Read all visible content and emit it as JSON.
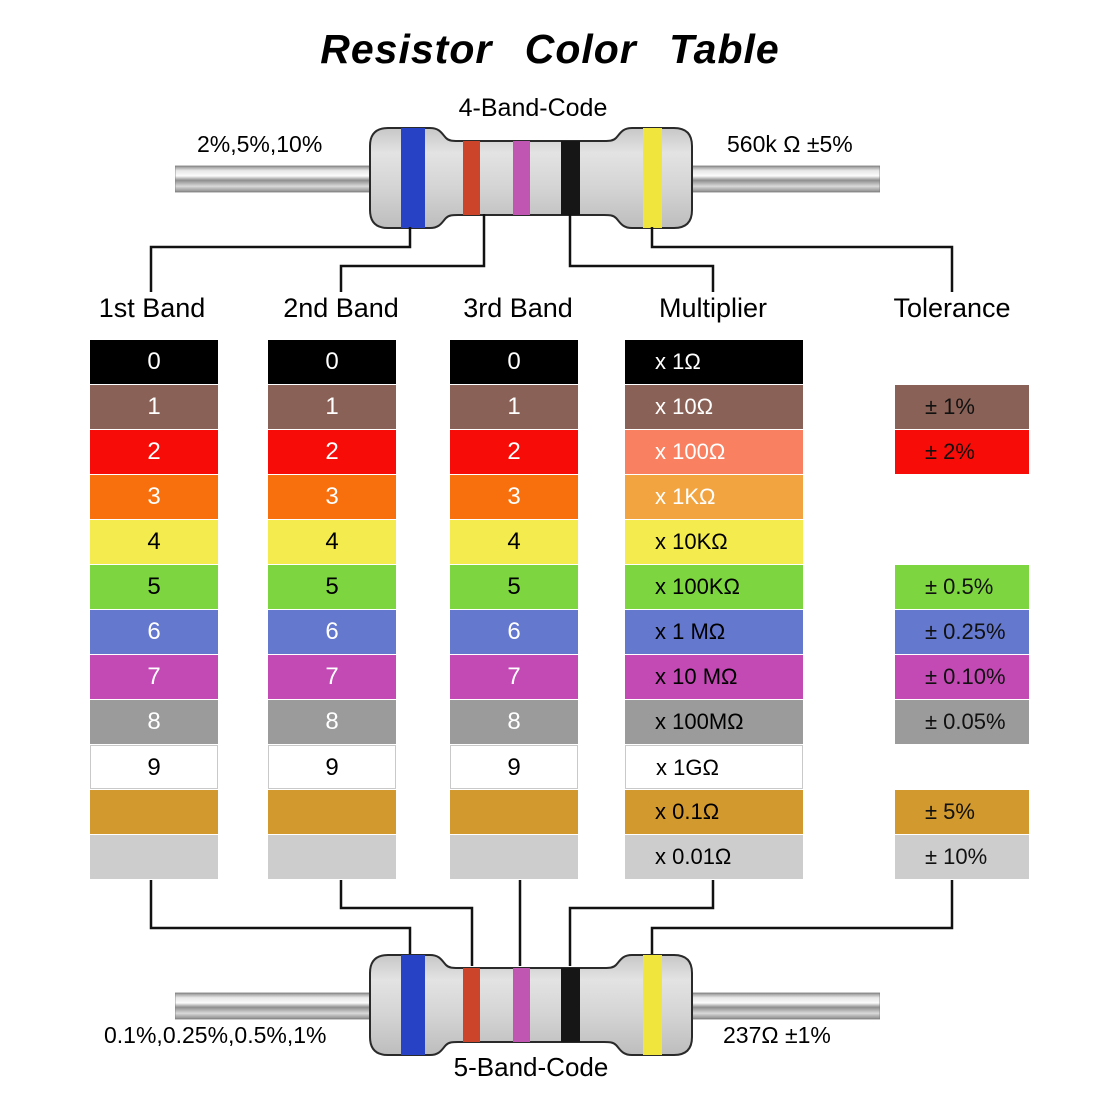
{
  "title": "Resistor Color Table",
  "headers": [
    "1st Band",
    "2nd Band",
    "3rd Band",
    "Multiplier",
    "Tolerance"
  ],
  "digit_rows": {
    "digits": [
      "0",
      "1",
      "2",
      "3",
      "4",
      "5",
      "6",
      "7",
      "8",
      "9",
      "",
      ""
    ],
    "color_names": [
      "black",
      "brown",
      "red",
      "orange",
      "yellow",
      "green",
      "blue",
      "violet",
      "gray",
      "white",
      "gold",
      "silver"
    ],
    "colors": [
      "#000000",
      "#8A6156",
      "#F80C08",
      "#F8700D",
      "#F4EC4F",
      "#7DD53F",
      "#6478CE",
      "#C34AB4",
      "#9B9B9B",
      "#FFFFFF",
      "#D1992E",
      "#CDCDCD"
    ],
    "text_colors": [
      "#FFFFFF",
      "#FFFFFF",
      "#FFFFFF",
      "#FFFFFF",
      "#000000",
      "#000000",
      "#FFFFFF",
      "#FFFFFF",
      "#FFFFFF",
      "#000000",
      "",
      ""
    ]
  },
  "multiplier_column": {
    "labels": [
      "x 1Ω",
      "x 10Ω",
      "x 100Ω",
      "x 1KΩ",
      "x 10KΩ",
      "x 100KΩ",
      "x 1 MΩ",
      "x 10 MΩ",
      "x 100MΩ",
      "x 1GΩ",
      "x 0.1Ω",
      "x 0.01Ω"
    ],
    "colors": [
      "#000000",
      "#8A6156",
      "#F98060",
      "#F2A440",
      "#F4EC4F",
      "#7DD53F",
      "#6478CE",
      "#C34AB4",
      "#9B9B9B",
      "#FFFFFF",
      "#D1992E",
      "#CDCDCD"
    ],
    "text_colors": [
      "#FFFFFF",
      "#FFFFFF",
      "#FFFFFF",
      "#FFFFFF",
      "#000000",
      "#000000",
      "#000000",
      "#000000",
      "#000000",
      "#000000",
      "#000000",
      "#000000"
    ]
  },
  "tolerance_column": {
    "rows": [
      {
        "row": 1,
        "label": "± 1%"
      },
      {
        "row": 2,
        "label": "± 2%"
      },
      {
        "row": 5,
        "label": "± 0.5%"
      },
      {
        "row": 6,
        "label": "± 0.25%"
      },
      {
        "row": 7,
        "label": "± 0.10%"
      },
      {
        "row": 8,
        "label": "± 0.05%"
      },
      {
        "row": 10,
        "label": "± 5%"
      },
      {
        "row": 11,
        "label": "± 10%"
      }
    ],
    "text_color": "#111111"
  },
  "top_resistor": {
    "code_label": "4-Band-Code",
    "left_label": "2%,5%,10%",
    "right_label": "560k Ω  ±5%",
    "band_colors": [
      "#2742C4",
      "#CC4429",
      "#C156B2",
      "#161616",
      "#EFE53C"
    ],
    "connected_bands": [
      "1st",
      "2nd",
      "multiplier",
      "tolerance"
    ]
  },
  "bottom_resistor": {
    "code_label": "5-Band-Code",
    "left_label": "0.1%,0.25%,0.5%,1%",
    "right_label": "237Ω  ±1%",
    "band_colors": [
      "#2742C4",
      "#CC4429",
      "#C156B2",
      "#161616",
      "#EFE53C"
    ],
    "connected_bands": [
      "1st",
      "2nd",
      "3rd",
      "multiplier",
      "tolerance"
    ]
  },
  "illustration_colors": {
    "resistor_body": "#D6D6D6",
    "resistor_outline": "#2A2A2A",
    "lead_metal": "#C0C0C0",
    "connector_line": "#111111"
  }
}
